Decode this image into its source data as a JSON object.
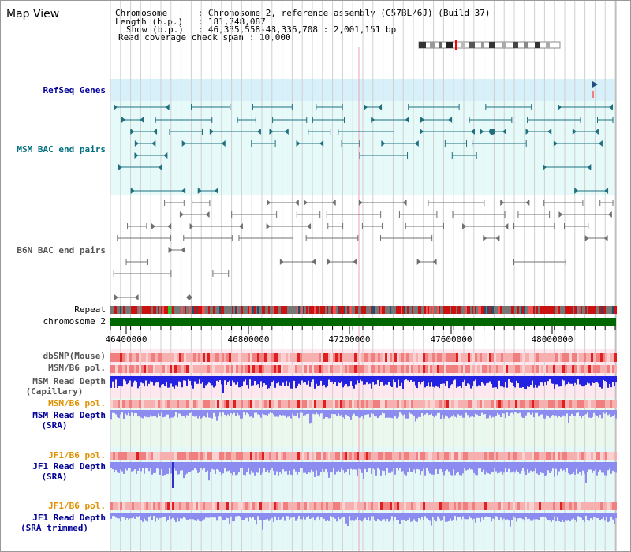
{
  "view": {
    "title": "Map View",
    "info": {
      "chromosome_label": "Chromosome",
      "chromosome_value": "Chromosome 2, reference assembly (C57BL/6J) (Build 37)",
      "length_label": "Length (b.p.)",
      "length_value": "181,748,087",
      "show_label": "Show (b.p.)",
      "show_value": "46,335,558-48,336,708 : 2,001,151 bp",
      "coverage_label": "Read coverage check span",
      "coverage_value": "10,000"
    }
  },
  "tracks": {
    "refseq": "RefSeq Genes",
    "msm_bac": "MSM BAC end pairs",
    "b6n_bac": "B6N BAC end pairs",
    "repeat": "Repeat",
    "chromosome": "chromosome 2",
    "dbsnp": "dbSNP(Mouse)",
    "msm_b6_pol": "MSM/B6 pol.",
    "msm_depth_cap_1": "MSM Read Depth",
    "msm_depth_cap_2": "(Capillary)",
    "msm_b6_pol_2": "MSM/B6 pol.",
    "msm_depth_sra_1": "MSM Read Depth",
    "msm_depth_sra_2": "(SRA)",
    "jf1_pol_1": "JF1/B6 pol.",
    "jf1_depth_sra_1": "JF1 Read Depth",
    "jf1_depth_sra_2": "(SRA)",
    "jf1_pol_2": "JF1/B6 pol.",
    "jf1_depth_trim_1": "JF1 Read Depth",
    "jf1_depth_trim_2": "(SRA trimmed)"
  },
  "axis": {
    "ticks": [
      "46400000",
      "46800000",
      "47200000",
      "47600000",
      "48000000"
    ],
    "range": [
      46335558,
      48336708
    ]
  },
  "colors": {
    "refseq_bg": "#d8f0fa",
    "bac_bg": "#e6fafa",
    "msm_feature": "#1f6f7f",
    "b6n_feature": "#707070",
    "chromosome": "#006600",
    "polymorphism": "#f08080",
    "depth_capillary": "#2222e0",
    "depth_sra": "#8c8cf0",
    "label_teal": "#006e7f",
    "label_navy": "#000099",
    "label_orange": "#e09000",
    "label_gray": "#555555"
  }
}
